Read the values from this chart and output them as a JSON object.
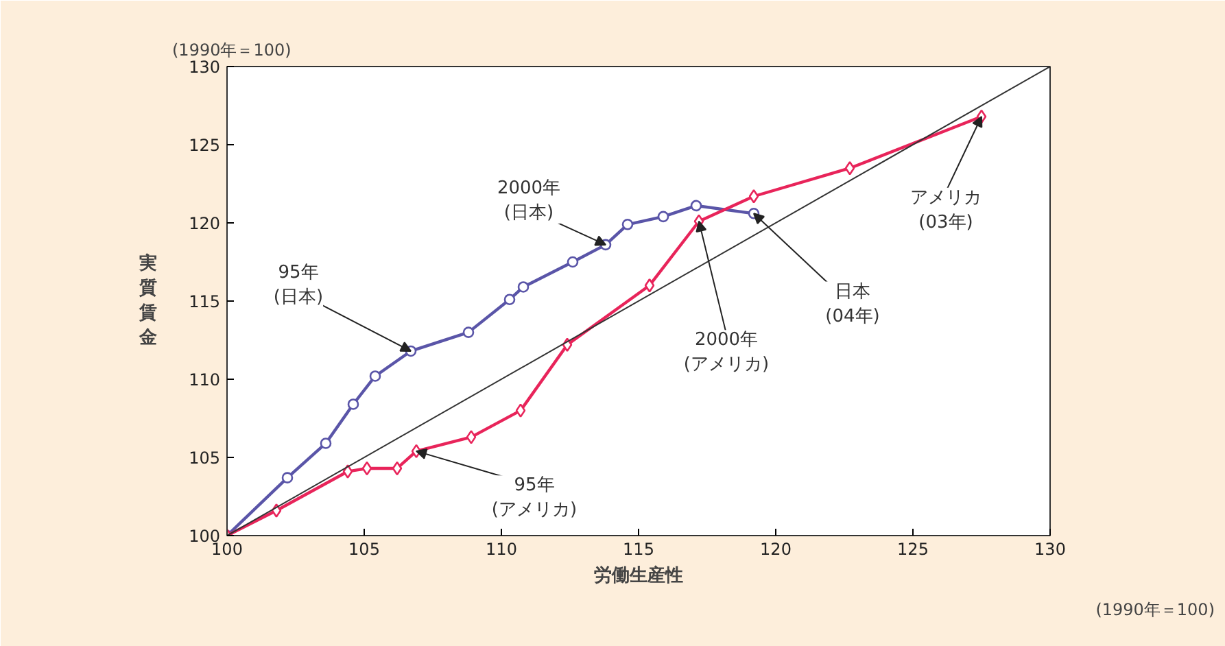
{
  "chart_data": {
    "type": "line",
    "xlabel": "労働生産性",
    "ylabel": "実質賃金",
    "xlim": [
      100,
      130
    ],
    "ylim": [
      100,
      130
    ],
    "xticks": [
      100,
      105,
      110,
      115,
      120,
      125,
      130
    ],
    "yticks": [
      100,
      105,
      110,
      115,
      120,
      125,
      130
    ],
    "grid": false,
    "series": [
      {
        "color": "#5a55a8",
        "marker": "circle",
        "x": [
          100,
          102.2,
          103.6,
          104.6,
          105.4,
          106.7,
          108.8,
          110.3,
          110.8,
          112.6,
          113.8,
          114.6,
          115.9,
          117.1,
          119.2
        ],
        "values": [
          100,
          103.7,
          105.9,
          108.4,
          110.2,
          111.8,
          113.0,
          115.1,
          115.9,
          117.5,
          118.6,
          119.9,
          120.4,
          121.1,
          120.6
        ]
      },
      {
        "color": "#e8245a",
        "marker": "diamond",
        "x": [
          100,
          101.8,
          104.4,
          105.1,
          106.2,
          106.9,
          108.9,
          110.7,
          112.4,
          115.4,
          117.2,
          119.2,
          122.7,
          127.5
        ],
        "values": [
          100,
          101.6,
          104.1,
          104.3,
          104.3,
          105.4,
          106.3,
          108.0,
          112.2,
          116.0,
          120.1,
          121.7,
          123.5,
          126.8
        ]
      },
      {
        "color": "#333333",
        "marker": "none",
        "x": [
          100,
          130
        ],
        "values": [
          100,
          130
        ]
      }
    ],
    "annotations": [
      "(1990年＝100)",
      "(1990年＝100)",
      {
        "text": "95年\n(日本)",
        "x": 106.7,
        "y": 111.8
      },
      {
        "text": "2000年\n(日本)",
        "x": 113.8,
        "y": 118.6
      },
      {
        "text": "日本\n(04年)",
        "x": 119.2,
        "y": 120.6
      },
      {
        "text": "2000年\n(アメリカ)",
        "x": 117.2,
        "y": 120.1
      },
      {
        "text": "95年\n(アメリカ)",
        "x": 106.9,
        "y": 105.4
      },
      {
        "text": "アメリカ\n(03年)",
        "x": 127.5,
        "y": 126.8
      }
    ]
  }
}
